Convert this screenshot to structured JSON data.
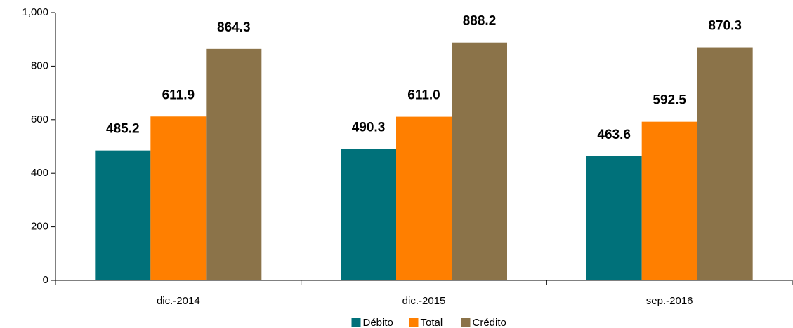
{
  "chart_data": {
    "type": "bar",
    "categories": [
      "dic.-2014",
      "dic.-2015",
      "sep.-2016"
    ],
    "series": [
      {
        "name": "Débito",
        "color": "#00717a",
        "values": [
          485.2,
          490.3,
          463.6
        ],
        "value_labels": [
          "485.2",
          "490.3",
          "463.6"
        ]
      },
      {
        "name": "Total",
        "color": "#ff7f00",
        "values": [
          611.9,
          611.0,
          592.5
        ],
        "value_labels": [
          "611.9",
          "611.0",
          "592.5"
        ]
      },
      {
        "name": "Crédito",
        "color": "#8b7349",
        "values": [
          864.3,
          888.2,
          870.3
        ],
        "value_labels": [
          "864.3",
          "888.2",
          "870.3"
        ]
      }
    ],
    "ylim": [
      0,
      1000
    ],
    "yticks": [
      0,
      200,
      400,
      600,
      800,
      {
        "value": 1000,
        "label": "1,000"
      }
    ],
    "legend": "bottom"
  }
}
